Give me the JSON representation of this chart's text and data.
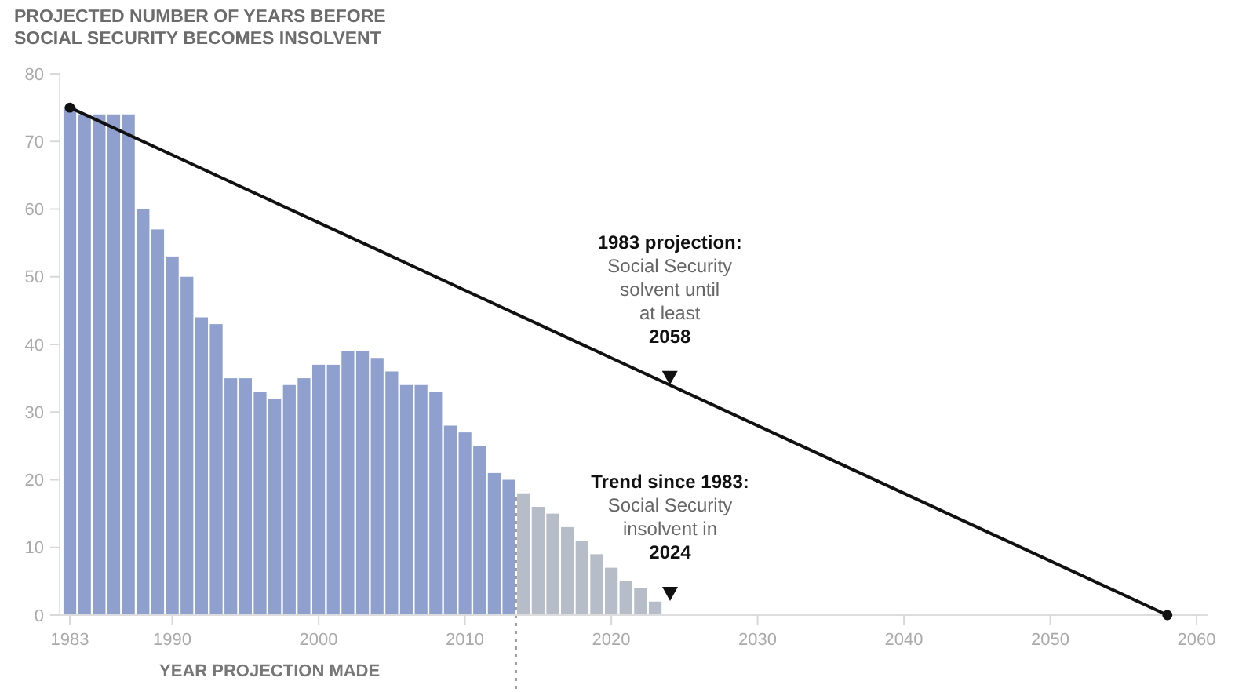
{
  "chart_data": {
    "type": "bar",
    "title": "PROJECTED NUMBER OF YEARS BEFORE\nSOCIAL SECURITY BECOMES INSOLVENT",
    "xlabel": "YEAR PROJECTION MADE",
    "xlim": [
      1982.3,
      2060.8
    ],
    "xticks": [
      1983,
      1990,
      2000,
      2010,
      2020,
      2030,
      2040,
      2050,
      2060
    ],
    "ylim": [
      0,
      80
    ],
    "yticks": [
      0,
      10,
      20,
      30,
      40,
      50,
      60,
      70,
      80
    ],
    "grid": false,
    "series": [
      {
        "x": [
          1983,
          1984,
          1985,
          1986,
          1987,
          1988,
          1989,
          1990,
          1991,
          1992,
          1993,
          1994,
          1995,
          1996,
          1997,
          1998,
          1999,
          2000,
          2001,
          2002,
          2003,
          2004,
          2005,
          2006,
          2007,
          2008,
          2009,
          2010,
          2011,
          2012,
          2013,
          2014,
          2015,
          2016,
          2017,
          2018,
          2019,
          2020,
          2021,
          2022,
          2023
        ],
        "values": [
          75,
          74,
          74,
          74,
          74,
          60,
          57,
          53,
          50,
          44,
          43,
          35,
          35,
          33,
          32,
          34,
          35,
          37,
          37,
          39,
          39,
          38,
          36,
          34,
          34,
          33,
          28,
          27,
          25,
          21,
          20,
          18,
          16,
          15,
          13,
          11,
          9,
          7,
          5,
          4,
          2
        ],
        "colors": [
          "#8fa0cf",
          "#8fa0cf",
          "#8fa0cf",
          "#8fa0cf",
          "#8fa0cf",
          "#8fa0cf",
          "#8fa0cf",
          "#8fa0cf",
          "#8fa0cf",
          "#8fa0cf",
          "#8fa0cf",
          "#8fa0cf",
          "#8fa0cf",
          "#8fa0cf",
          "#8fa0cf",
          "#8fa0cf",
          "#8fa0cf",
          "#8fa0cf",
          "#8fa0cf",
          "#8fa0cf",
          "#8fa0cf",
          "#8fa0cf",
          "#8fa0cf",
          "#8fa0cf",
          "#8fa0cf",
          "#8fa0cf",
          "#8fa0cf",
          "#8fa0cf",
          "#8fa0cf",
          "#8fa0cf",
          "#8fa0cf",
          "#b6bcc8",
          "#b6bcc8",
          "#b6bcc8",
          "#b6bcc8",
          "#b6bcc8",
          "#b6bcc8",
          "#b6bcc8",
          "#b6bcc8",
          "#b6bcc8",
          "#b6bcc8"
        ]
      },
      {
        "type": "line",
        "x": [
          1983,
          2058
        ],
        "values": [
          75,
          0
        ],
        "color": "#111111",
        "marker": "circle",
        "line_style": "solid"
      }
    ],
    "ref_lines": [
      {
        "axis": "x",
        "value": 2013.5,
        "color": "#999999",
        "line_style": "dotted"
      }
    ],
    "annotations": [
      {
        "text": "1983 projection:\nSocial Security\nsolvent until\nat least\n2058",
        "x": 2024,
        "y": 34
      },
      "Trend since 1983:\nSocial Security\ninsolvent in\n2024"
    ]
  }
}
